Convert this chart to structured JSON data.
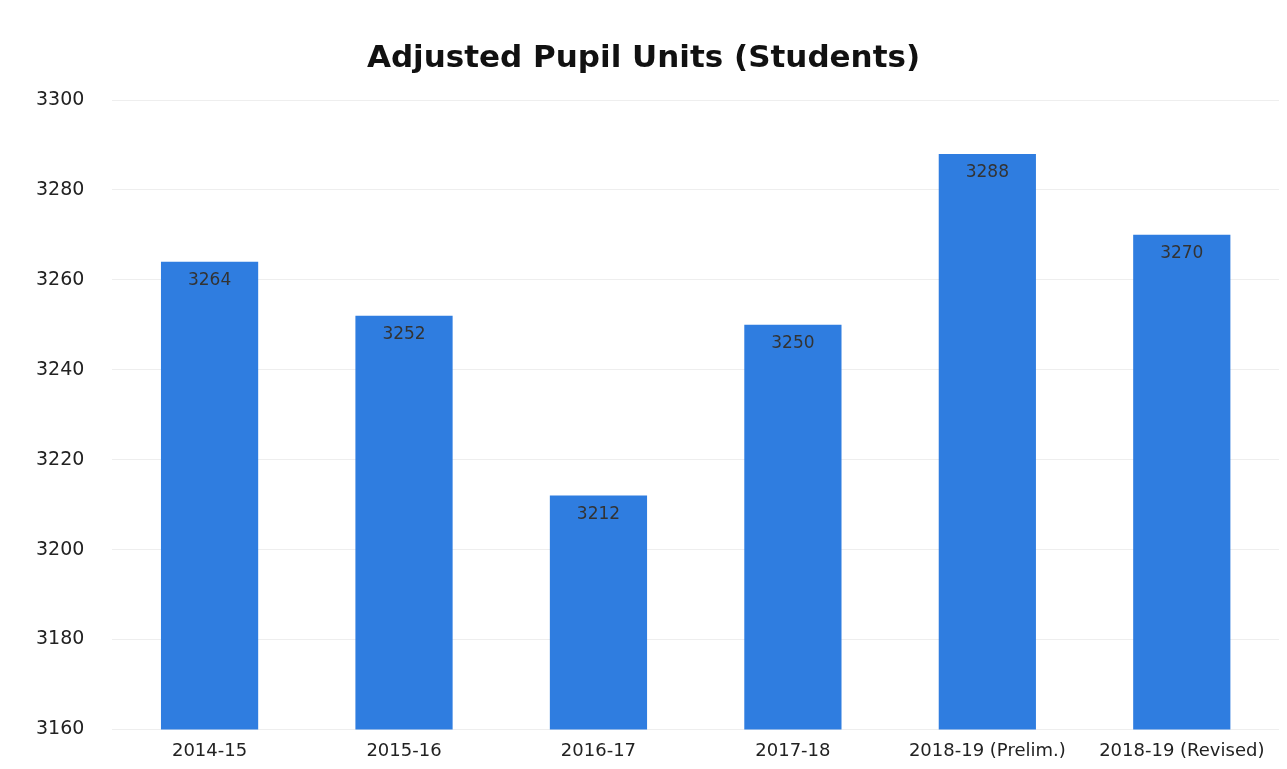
{
  "chart_data": {
    "type": "bar",
    "title": "Adjusted Pupil Units (Students)",
    "categories": [
      "2014-15",
      "2015-16",
      "2016-17",
      "2017-18",
      "2018-19 (Prelim.)",
      "2018-19 (Revised)"
    ],
    "values": [
      3264,
      3252,
      3212,
      3250,
      3288,
      3270
    ],
    "color": "#2f7de0",
    "ylim": [
      3160,
      3300
    ],
    "yticks": [
      3160,
      3180,
      3200,
      3220,
      3240,
      3260,
      3280,
      3300
    ],
    "grid": "y",
    "data_labels": true
  }
}
